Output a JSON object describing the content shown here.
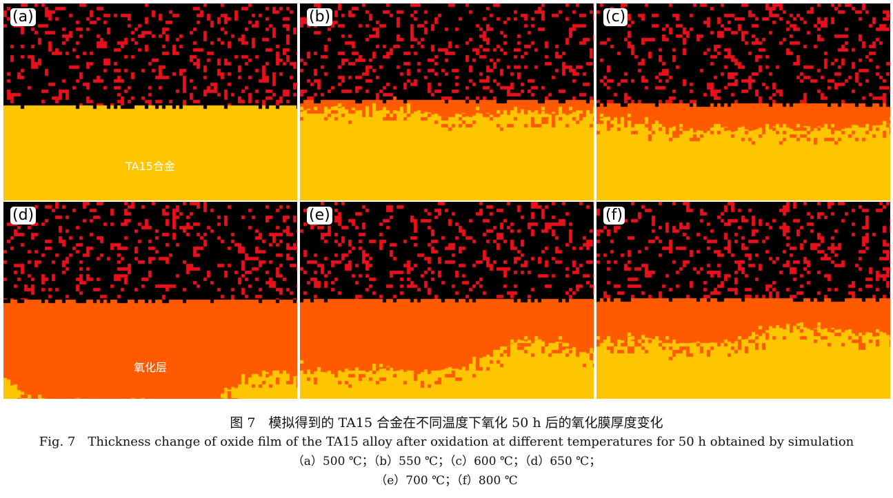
{
  "colors": {
    "void": "#000000",
    "oxygen": "#e8101a",
    "alloy": "#fec501",
    "oxide": "#ff5a00",
    "label_bg": "#ffffff"
  },
  "panels": [
    {
      "label": "(a)",
      "temperature": "500 ℃",
      "annotation": "TA15合金",
      "oxide_depth_fraction": 0.0
    },
    {
      "label": "(b)",
      "temperature": "550 ℃",
      "annotation": "",
      "oxide_depth_fraction": 0.12
    },
    {
      "label": "(c)",
      "temperature": "600 ℃",
      "annotation": "",
      "oxide_depth_fraction": 0.22
    },
    {
      "label": "(d)",
      "temperature": "650 ℃",
      "annotation": "氧化层",
      "oxide_depth_fraction": 0.92
    },
    {
      "label": "(e)",
      "temperature": "700 ℃",
      "annotation": "",
      "oxide_depth_fraction": 0.62
    },
    {
      "label": "(f)",
      "temperature": "800 ℃",
      "annotation": "",
      "oxide_depth_fraction": 0.42
    }
  ],
  "caption": {
    "cn": "图 7　模拟得到的 TA15 合金在不同温度下氧化 50 h 后的氧化膜厚度变化",
    "en": "Fig. 7　Thickness change of oxide film of the TA15 alloy after oxidation at different temperatures for 50 h obtained by simulation",
    "sub1": "（a）500 ℃；（b）550 ℃；（c）600 ℃；（d）650 ℃；",
    "sub2": "（e）700 ℃；（f）800 ℃"
  }
}
